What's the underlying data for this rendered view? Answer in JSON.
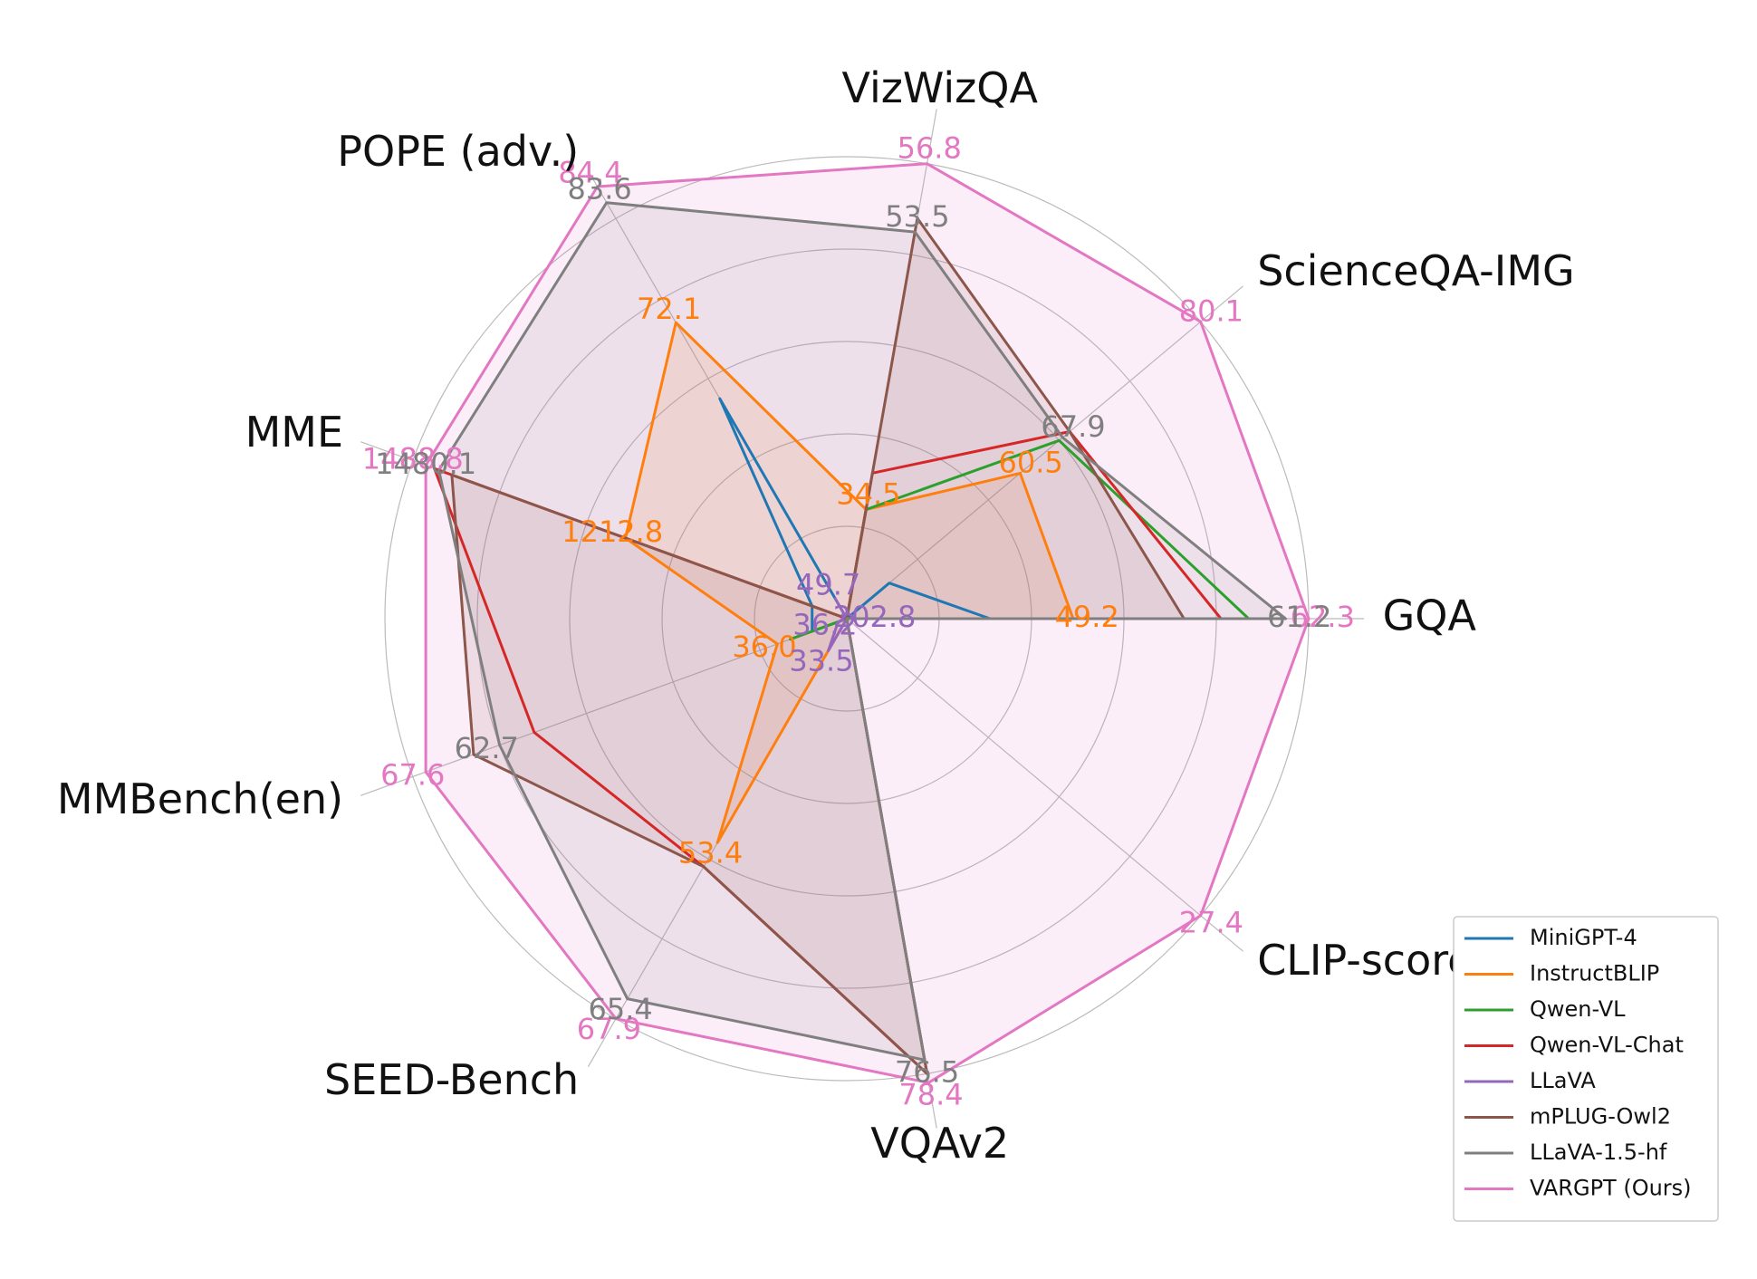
{
  "chart_data": {
    "type": "radar",
    "axes": [
      "GQA",
      "ScienceQA-IMG",
      "VizWizQA",
      "POPE (adv.)",
      "MME",
      "MMBench(en)",
      "SEED-Bench",
      "VQAv2",
      "CLIP-score"
    ],
    "series": [
      {
        "name": "MiniGPT-4",
        "color": "#1f77b4",
        "fill": false,
        "r": [
          0.31,
          0.12,
          0.0,
          0.55,
          0.08,
          0.08,
          0.0,
          0.0,
          0.0
        ]
      },
      {
        "name": "InstructBLIP",
        "color": "#ff7f0e",
        "fill": true,
        "r": [
          0.49,
          0.49,
          0.24,
          0.74,
          0.51,
          0.16,
          0.56,
          0.0,
          0.0
        ]
      },
      {
        "name": "Qwen-VL",
        "color": "#2ca02c",
        "fill": false,
        "r": [
          0.87,
          0.6,
          0.24,
          0.0,
          0.0,
          0.13,
          0.0,
          0.0,
          0.0
        ]
      },
      {
        "name": "Qwen-VL-Chat",
        "color": "#d62728",
        "fill": false,
        "r": [
          0.81,
          0.63,
          0.32,
          0.0,
          0.95,
          0.72,
          0.62,
          1.0,
          0.0
        ]
      },
      {
        "name": "LLaVA",
        "color": "#9467bd",
        "fill": false,
        "r": [
          0.03,
          0.0,
          0.0,
          0.05,
          0.0,
          0.02,
          0.08,
          0.0,
          0.0
        ]
      },
      {
        "name": "mPLUG-Owl2",
        "color": "#8c564b",
        "fill": true,
        "r": [
          0.73,
          0.63,
          0.88,
          0.0,
          0.91,
          0.86,
          0.62,
          1.0,
          0.0
        ]
      },
      {
        "name": "LLaVA-1.5-hf",
        "color": "#7f7f7f",
        "fill": true,
        "r": [
          0.95,
          0.61,
          0.85,
          1.04,
          0.94,
          0.8,
          0.95,
          0.97,
          0.0
        ]
      },
      {
        "name": "VARGPT (Ours)",
        "color": "#e377c2",
        "fill": true,
        "r": [
          1.0,
          1.0,
          1.0,
          1.08,
          0.97,
          0.97,
          1.0,
          1.02,
          1.0
        ]
      }
    ],
    "value_labels": [
      {
        "axis": 0,
        "series": "VARGPT (Ours)",
        "text": "62.3"
      },
      {
        "axis": 0,
        "series": "LLaVA-1.5-hf",
        "text": "61.2"
      },
      {
        "axis": 0,
        "series": "InstructBLIP",
        "text": "49.2"
      },
      {
        "axis": 0,
        "series": "LLaVA",
        "text": "202.8"
      },
      {
        "axis": 1,
        "series": "VARGPT (Ours)",
        "text": "80.1"
      },
      {
        "axis": 1,
        "series": "LLaVA-1.5-hf",
        "text": "67.9"
      },
      {
        "axis": 1,
        "series": "InstructBLIP",
        "text": "60.5"
      },
      {
        "axis": 2,
        "series": "VARGPT (Ours)",
        "text": "56.8"
      },
      {
        "axis": 2,
        "series": "LLaVA-1.5-hf",
        "text": "53.5"
      },
      {
        "axis": 2,
        "series": "InstructBLIP",
        "text": "34.5"
      },
      {
        "axis": 3,
        "series": "VARGPT (Ours)",
        "text": "84.4"
      },
      {
        "axis": 3,
        "series": "LLaVA-1.5-hf",
        "text": "83.6"
      },
      {
        "axis": 3,
        "series": "InstructBLIP",
        "text": "72.1"
      },
      {
        "axis": 3,
        "series": "LLaVA",
        "text": "49.7"
      },
      {
        "axis": 4,
        "series": "VARGPT (Ours)",
        "text": "1488.8"
      },
      {
        "axis": 4,
        "series": "LLaVA-1.5-hf",
        "text": "1480.1"
      },
      {
        "axis": 4,
        "series": "InstructBLIP",
        "text": "1212.8"
      },
      {
        "axis": 5,
        "series": "VARGPT (Ours)",
        "text": "67.6"
      },
      {
        "axis": 5,
        "series": "LLaVA-1.5-hf",
        "text": "62.7"
      },
      {
        "axis": 5,
        "series": "InstructBLIP",
        "text": "36.0"
      },
      {
        "axis": 5,
        "series": "LLaVA",
        "text": "36.2"
      },
      {
        "axis": 6,
        "series": "VARGPT (Ours)",
        "text": "67.9"
      },
      {
        "axis": 6,
        "series": "LLaVA-1.5-hf",
        "text": "65.4"
      },
      {
        "axis": 6,
        "series": "InstructBLIP",
        "text": "53.4"
      },
      {
        "axis": 6,
        "series": "LLaVA",
        "text": "33.5"
      },
      {
        "axis": 7,
        "series": "VARGPT (Ours)",
        "text": "78.4"
      },
      {
        "axis": 7,
        "series": "LLaVA-1.5-hf",
        "text": "76.5"
      },
      {
        "axis": 8,
        "series": "VARGPT (Ours)",
        "text": "27.4"
      }
    ],
    "grid": true,
    "legend_position": "bottom-right"
  }
}
